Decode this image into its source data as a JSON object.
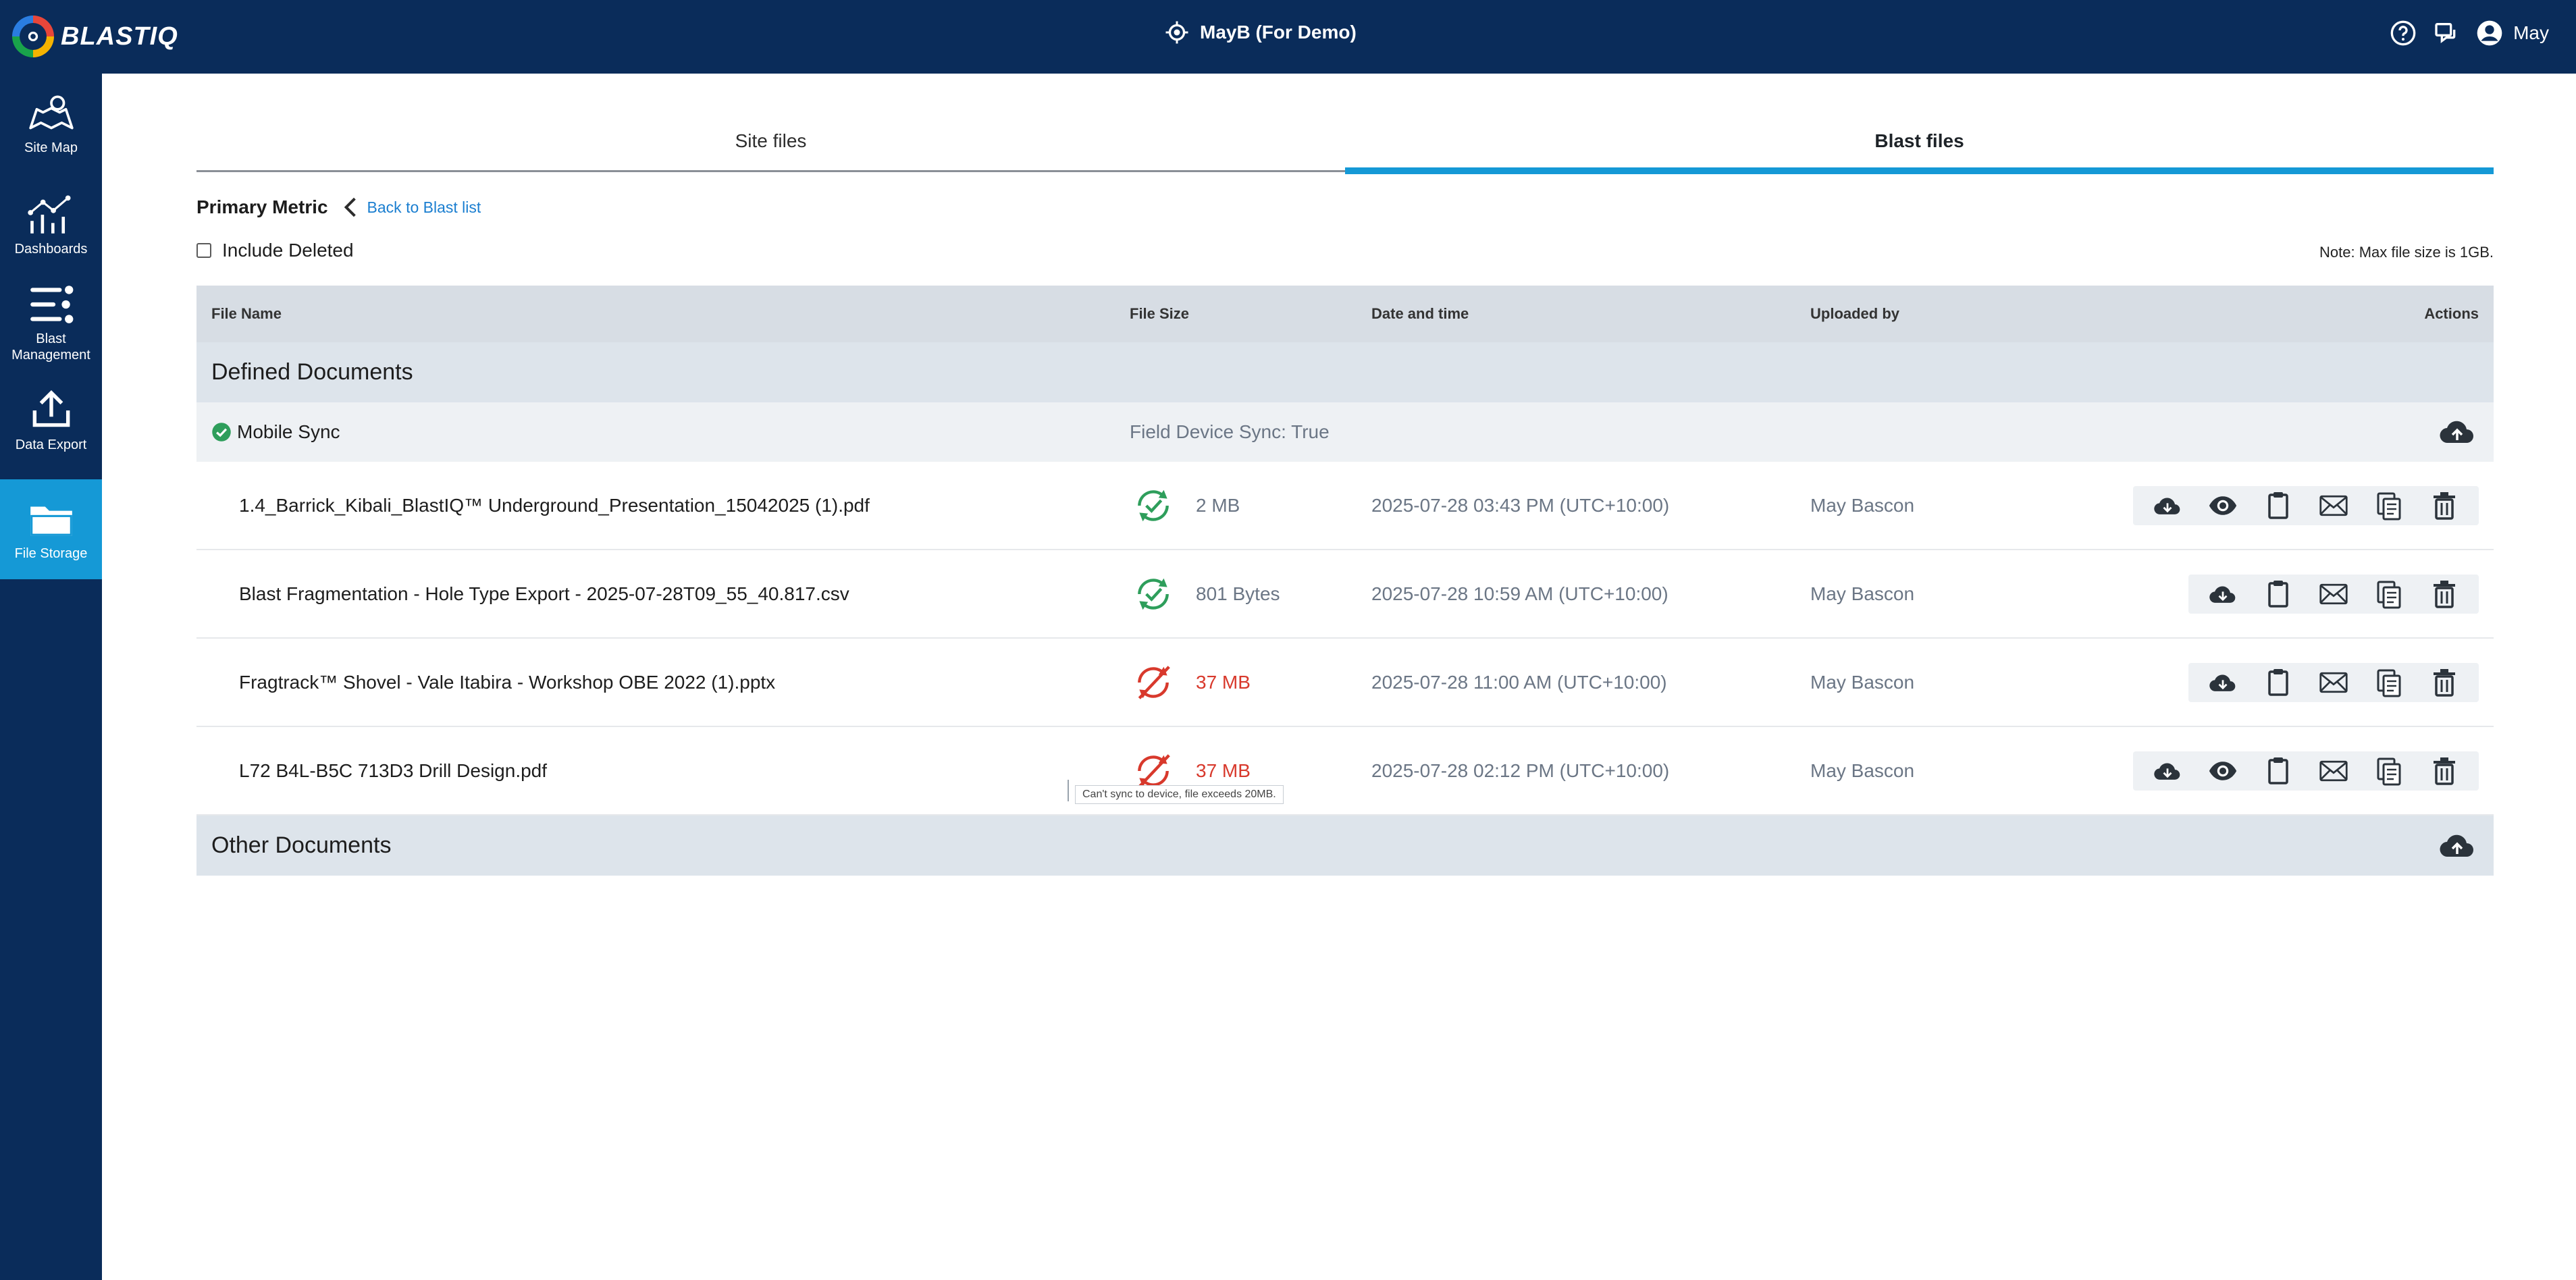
{
  "app": {
    "brand": "BLASTIQ",
    "site_title": "MayB (For Demo)",
    "user_name": "May"
  },
  "sidebar": {
    "items": [
      {
        "label": "Site Map",
        "icon": "map-icon"
      },
      {
        "label": "Dashboards",
        "icon": "dashboard-icon"
      },
      {
        "label": "Blast Management",
        "icon": "blast-management-icon"
      },
      {
        "label": "Data Export",
        "icon": "export-icon"
      },
      {
        "label": "File Storage",
        "icon": "folder-icon",
        "active": true
      }
    ]
  },
  "tabs": [
    {
      "label": "Site files",
      "active": false
    },
    {
      "label": "Blast files",
      "active": true
    }
  ],
  "breadcrumb": {
    "title": "Primary Metric",
    "back_label": "Back to Blast list"
  },
  "filters": {
    "include_deleted_label": "Include Deleted",
    "include_deleted_checked": false
  },
  "note": "Note: Max file size is 1GB.",
  "table": {
    "columns": {
      "name": "File Name",
      "size": "File Size",
      "date": "Date and time",
      "by": "Uploaded by",
      "actions": "Actions"
    },
    "defined_documents_label": "Defined Documents",
    "mobile_sync": {
      "label": "Mobile Sync",
      "value": "Field Device Sync: True"
    },
    "rows": [
      {
        "name": "1.4_Barrick_Kibali_BlastIQ™ Underground_Presentation_15042025 (1).pdf",
        "size": "2 MB",
        "date": "2025-07-28 03:43 PM (UTC+10:00)",
        "by": "May Bascon",
        "synced": true,
        "viewable": true
      },
      {
        "name": "Blast Fragmentation - Hole Type Export - 2025-07-28T09_55_40.817.csv",
        "size": "801 Bytes",
        "date": "2025-07-28 10:59 AM (UTC+10:00)",
        "by": "May Bascon",
        "synced": true,
        "viewable": false
      },
      {
        "name": "Fragtrack™ Shovel - Vale Itabira - Workshop OBE 2022 (1).pptx",
        "size": "37 MB",
        "date": "2025-07-28 11:00 AM (UTC+10:00)",
        "by": "May Bascon",
        "synced": false,
        "viewable": false
      },
      {
        "name": "L72 B4L-B5C 713D3 Drill Design.pdf",
        "size": "37 MB",
        "date": "2025-07-28 02:12 PM (UTC+10:00)",
        "by": "May Bascon",
        "synced": false,
        "viewable": true
      }
    ],
    "other_documents_label": "Other Documents"
  },
  "tooltip": "Can't sync to device, file exceeds 20MB.",
  "colors": {
    "navy": "#0a2c5a",
    "accent": "#1599d6",
    "ok": "#2e9e5b",
    "error": "#d8392c"
  }
}
